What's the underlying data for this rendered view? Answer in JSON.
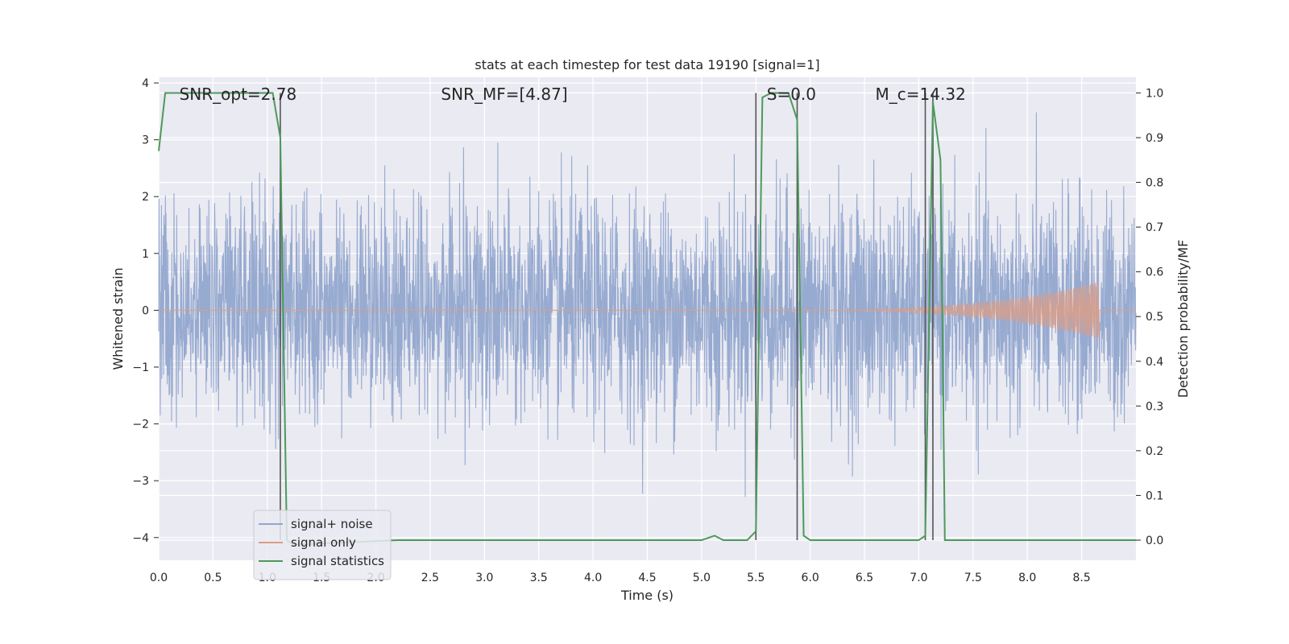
{
  "chart_data": {
    "type": "line",
    "title": "stats at each timestep for test data 19190 [signal=1]",
    "xlabel": "Time (s)",
    "ylabel": "Whitened strain",
    "y2label": "Detection probability/MF",
    "xlim": [
      0,
      9.0
    ],
    "ylim": [
      -4.4,
      4.1
    ],
    "y2lim": [
      -0.045,
      1.035
    ],
    "xticks": [
      0.0,
      0.5,
      1.0,
      1.5,
      2.0,
      2.5,
      3.0,
      3.5,
      4.0,
      4.5,
      5.0,
      5.5,
      6.0,
      6.5,
      7.0,
      7.5,
      8.0,
      8.5
    ],
    "xtick_labels": [
      "0.0",
      "0.5",
      "1.0",
      "1.5",
      "2.0",
      "2.5",
      "3.0",
      "3.5",
      "4.0",
      "4.5",
      "5.0",
      "5.5",
      "6.0",
      "6.5",
      "7.0",
      "7.5",
      "8.0",
      "8.5"
    ],
    "yticks": [
      4,
      3,
      2,
      1,
      0,
      -1,
      -2,
      -3,
      -4
    ],
    "ytick_labels": [
      "4",
      "3",
      "2",
      "1",
      "0",
      "−1",
      "−2",
      "−3",
      "−4"
    ],
    "y2ticks": [
      1.0,
      0.9,
      0.8,
      0.7,
      0.6,
      0.5,
      0.4,
      0.3,
      0.2,
      0.1,
      0.0
    ],
    "y2tick_labels": [
      "1.0",
      "0.9",
      "0.8",
      "0.7",
      "0.6",
      "0.5",
      "0.4",
      "0.3",
      "0.2",
      "0.1",
      "0.0"
    ],
    "grid": true,
    "legend_position": "lower-left",
    "annotations": [
      {
        "text": "SNR_opt=2.78",
        "x": 0.19
      },
      {
        "text": "SNR_MF=[4.87]",
        "x": 2.6
      },
      {
        "text": "S=0.0",
        "x": 5.6
      },
      {
        "text": "M_c=14.32",
        "x": 6.6
      }
    ],
    "vlines": [
      1.12,
      5.5,
      5.88,
      7.06,
      7.13
    ],
    "series": [
      {
        "name": "signal+ noise",
        "color": "#92a7ce",
        "axis": "left",
        "kind": "noise",
        "amplitude": 1.35,
        "duration": 9.0
      },
      {
        "name": "signal only",
        "color": "#dd9d85",
        "axis": "left",
        "kind": "chirp",
        "start": 5.5,
        "end": 8.66,
        "peak_amplitude": 0.5
      },
      {
        "name": "signal statistics",
        "color": "#4c9a5a",
        "axis": "right",
        "x": [
          0.0,
          0.06,
          0.12,
          0.5,
          1.05,
          1.12,
          1.18,
          1.24,
          2.2,
          3.4,
          5.0,
          5.12,
          5.2,
          5.3,
          5.42,
          5.5,
          5.56,
          5.64,
          5.8,
          5.88,
          5.94,
          6.0,
          6.5,
          7.0,
          7.06,
          7.13,
          7.2,
          7.24,
          8.0,
          9.0
        ],
        "y": [
          0.87,
          1.0,
          1.0,
          1.0,
          1.0,
          0.9,
          0.0,
          -0.01,
          0.0,
          0.0,
          0.0,
          0.01,
          0.0,
          0.0,
          0.0,
          0.02,
          0.99,
          1.0,
          1.0,
          0.94,
          0.01,
          0.0,
          0.0,
          0.0,
          0.01,
          0.98,
          0.85,
          0.0,
          0.0,
          0.0
        ]
      }
    ]
  }
}
